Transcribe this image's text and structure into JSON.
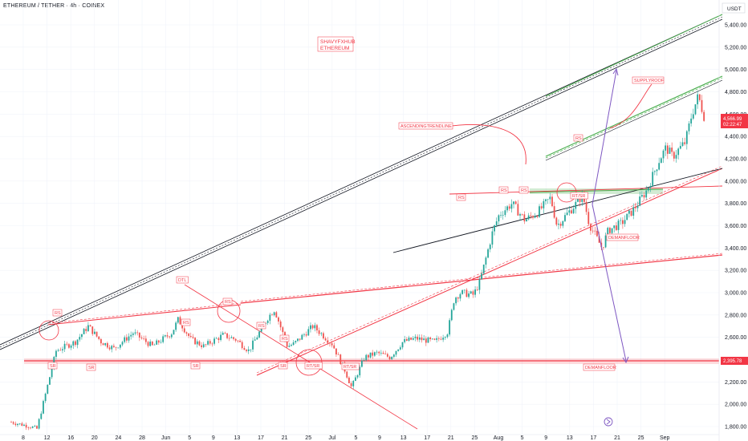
{
  "header": {
    "symbol_title": "ETHEREUM / TETHER · 4h · COINEX"
  },
  "watermark_box": {
    "line1": "SHAVYFXHUB",
    "line2": "ETHEREUM"
  },
  "price_badges": {
    "current_price": "4,566.99",
    "countdown": "02:22:47",
    "level": "2,395.78"
  },
  "annotations": {
    "supply_roof": "SUPPLYROOF",
    "ascending_trendline": "ASCENDINGTRENDLINE",
    "demand_floor_1": "DEMANFLOOR",
    "demand_floor_2": "DEMANFLOOR",
    "dtl": "DTL",
    "rs": "RS",
    "sr": "SR",
    "rtsr": "RT/SR"
  },
  "colors": {
    "bull": "#26a69a",
    "bear": "#ef5350",
    "red_line": "#f23645",
    "green_line": "#4caf50",
    "purple": "#7e57c2",
    "dark_line": "#131722",
    "grid": "#f0f3fa"
  },
  "chart_data": {
    "type": "candlestick",
    "title": "ETHEREUM / TETHER · 4h · COINEX",
    "y_axis_label": "USDT",
    "ylim": [
      1750,
      5550
    ],
    "y_ticks": [
      1800,
      2000,
      2200,
      2400,
      2600,
      2800,
      3000,
      3200,
      3400,
      3600,
      3800,
      4000,
      4200,
      4400,
      4600,
      4800,
      5000,
      5200,
      5400
    ],
    "y_tick_labels": [
      "1,800.00",
      "2,000.00",
      "2,200.00",
      "2,400.00",
      "2,600.00",
      "2,800.00",
      "3,000.00",
      "3,200.00",
      "3,400.00",
      "3,600.00",
      "3,800.00",
      "4,000.00",
      "4,200.00",
      "4,400.00",
      "4,600.00",
      "4,800.00",
      "5,000.00",
      "5,200.00",
      "5,400.00"
    ],
    "x_tick_labels": [
      "8",
      "12",
      "16",
      "20",
      "24",
      "28",
      "Jun",
      "5",
      "9",
      "13",
      "17",
      "21",
      "25",
      "Jul",
      "5",
      "9",
      "13",
      "17",
      "21",
      "25",
      "Aug",
      "5",
      "9",
      "13",
      "17",
      "21",
      "25",
      "Sep"
    ],
    "price_path": [
      {
        "day": 1,
        "price": 1840
      },
      {
        "day": 4,
        "price": 1800
      },
      {
        "day": 5,
        "price": 1780
      },
      {
        "day": 8,
        "price": 2480
      },
      {
        "day": 11,
        "price": 2560
      },
      {
        "day": 13,
        "price": 2700
      },
      {
        "day": 15,
        "price": 2560
      },
      {
        "day": 17,
        "price": 2500
      },
      {
        "day": 20,
        "price": 2640
      },
      {
        "day": 23,
        "price": 2520
      },
      {
        "day": 26,
        "price": 2640
      },
      {
        "day": 27,
        "price": 2760
      },
      {
        "day": 29,
        "price": 2580
      },
      {
        "day": 31,
        "price": 2520
      },
      {
        "day": 34,
        "price": 2620
      },
      {
        "day": 36,
        "price": 2580
      },
      {
        "day": 38,
        "price": 2480
      },
      {
        "day": 41,
        "price": 2780
      },
      {
        "day": 42,
        "price": 2850
      },
      {
        "day": 44,
        "price": 2520
      },
      {
        "day": 45,
        "price": 2540
      },
      {
        "day": 48,
        "price": 2700
      },
      {
        "day": 51,
        "price": 2540
      },
      {
        "day": 53,
        "price": 2300
      },
      {
        "day": 54,
        "price": 2150
      },
      {
        "day": 56,
        "price": 2420
      },
      {
        "day": 58,
        "price": 2460
      },
      {
        "day": 60,
        "price": 2420
      },
      {
        "day": 62,
        "price": 2560
      },
      {
        "day": 64,
        "price": 2590
      },
      {
        "day": 67,
        "price": 2560
      },
      {
        "day": 69,
        "price": 2650
      },
      {
        "day": 70,
        "price": 2950
      },
      {
        "day": 71,
        "price": 3000
      },
      {
        "day": 73,
        "price": 2980
      },
      {
        "day": 74,
        "price": 3100
      },
      {
        "day": 76,
        "price": 3550
      },
      {
        "day": 77,
        "price": 3700
      },
      {
        "day": 79,
        "price": 3800
      },
      {
        "day": 81,
        "price": 3650
      },
      {
        "day": 83,
        "price": 3720
      },
      {
        "day": 85,
        "price": 3850
      },
      {
        "day": 86,
        "price": 3600
      },
      {
        "day": 89,
        "price": 3800
      },
      {
        "day": 90,
        "price": 3880
      },
      {
        "day": 91,
        "price": 3620
      },
      {
        "day": 93,
        "price": 3400
      },
      {
        "day": 94,
        "price": 3560
      },
      {
        "day": 96,
        "price": 3620
      },
      {
        "day": 98,
        "price": 3750
      },
      {
        "day": 100,
        "price": 3920
      },
      {
        "day": 102,
        "price": 4200
      },
      {
        "day": 103,
        "price": 4300
      },
      {
        "day": 104,
        "price": 4220
      },
      {
        "day": 106,
        "price": 4350
      },
      {
        "day": 107,
        "price": 4600
      },
      {
        "day": 108,
        "price": 4760
      },
      {
        "day": 109,
        "price": 4566.99
      }
    ],
    "key_levels": [
      {
        "label": "DEMANFLOOR",
        "price": 2395.78
      }
    ],
    "last_price": 4566.99
  }
}
